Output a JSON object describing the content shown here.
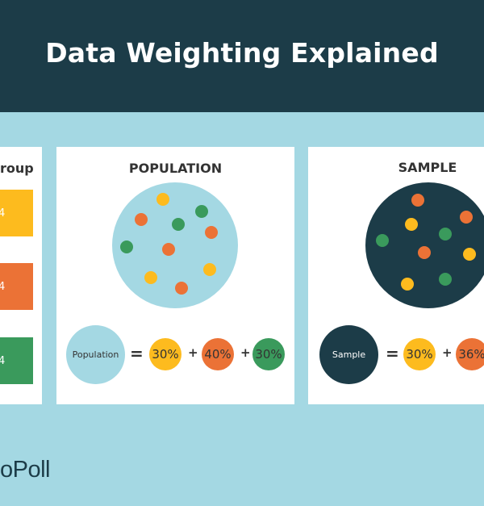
{
  "header": {
    "title": "Data Weighting Explained"
  },
  "left_panel": {
    "heading": "roup",
    "bars": [
      {
        "label": "4",
        "color": "#fdbb1e"
      },
      {
        "label": "4",
        "color": "#eb7236"
      },
      {
        "label": "4",
        "color": "#3a9a5c"
      }
    ]
  },
  "population": {
    "heading": "POPULATION",
    "circle_label": "Population",
    "equals": "=",
    "plus": "+",
    "percents": [
      "30%",
      "40%",
      "30%"
    ]
  },
  "sample": {
    "heading": "SAMPLE",
    "circle_label": "Sample",
    "equals": "=",
    "plus": "+",
    "percents": [
      "30%",
      "36%"
    ]
  },
  "colors": {
    "header": "#1c3c48",
    "background": "#a4d8e3",
    "yellow": "#fdbb1e",
    "orange": "#eb7236",
    "green": "#3a9a5c",
    "dark": "#1c3c48"
  },
  "logo": {
    "text": "oPoll"
  }
}
